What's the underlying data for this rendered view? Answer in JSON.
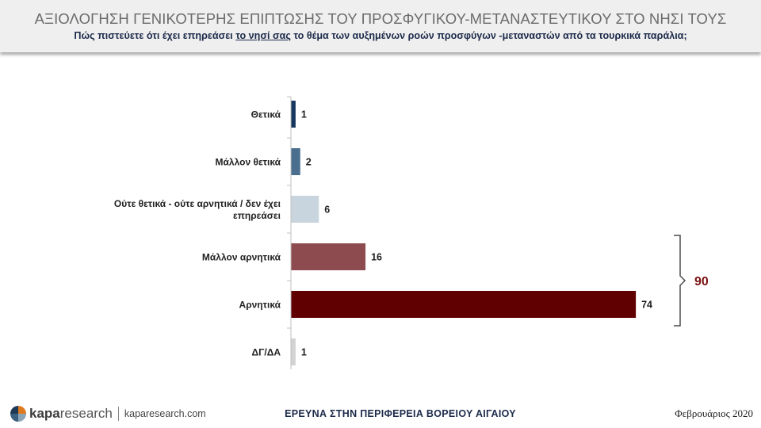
{
  "header": {
    "title": "ΑΞΙΟΛΟΓΗΣΗ ΓΕΝΙΚΟΤΕΡΗΣ ΕΠΙΠΤΩΣΗΣ ΤΟΥ ΠΡΟΣΦΥΓΙΚΟΥ-ΜΕΤΑΝΑΣΤΕΥΤΙΚΟΥ ΣΤΟ ΝΗΣΙ ΤΟΥΣ",
    "subtitle_pre": "Πώς πιστεύετε ότι έχει επηρεάσει ",
    "subtitle_underlined": "το νησί σας",
    "subtitle_post": " το θέμα των αυξημένων ροών προσφύγων -μεταναστών από τα τουρκικά παράλια;"
  },
  "chart_data": {
    "type": "bar",
    "orientation": "horizontal",
    "categories": [
      "Θετικά",
      "Μάλλον θετικά",
      "Ούτε θετικά - ούτε αρνητικά / δεν έχει επηρεάσει",
      "Μάλλον αρνητικά",
      "Αρνητικά",
      "ΔΓ/ΔΑ"
    ],
    "values": [
      1,
      2,
      6,
      16,
      74,
      1
    ],
    "bar_colors": [
      "#17375e",
      "#4a6e8e",
      "#c9d5de",
      "#8e4b4f",
      "#600000",
      "#d3d3d3"
    ],
    "xlim": [
      0,
      80
    ],
    "grid": false,
    "bracket": {
      "categories": [
        "Μάλλον αρνητικά",
        "Αρνητικά"
      ],
      "label": "90",
      "color": "#7b1414"
    }
  },
  "footer": {
    "brand_bold": "kapa",
    "brand_rest": "research",
    "site": "kaparesearch.com",
    "center": "ΕΡΕΥΝΑ ΣΤΗΝ ΠΕΡΙΦΕΡΕΙΑ ΒΟΡΕΙΟΥ ΑΙΓΑΙΟΥ",
    "date": "Φεβρουάριος 2020"
  }
}
